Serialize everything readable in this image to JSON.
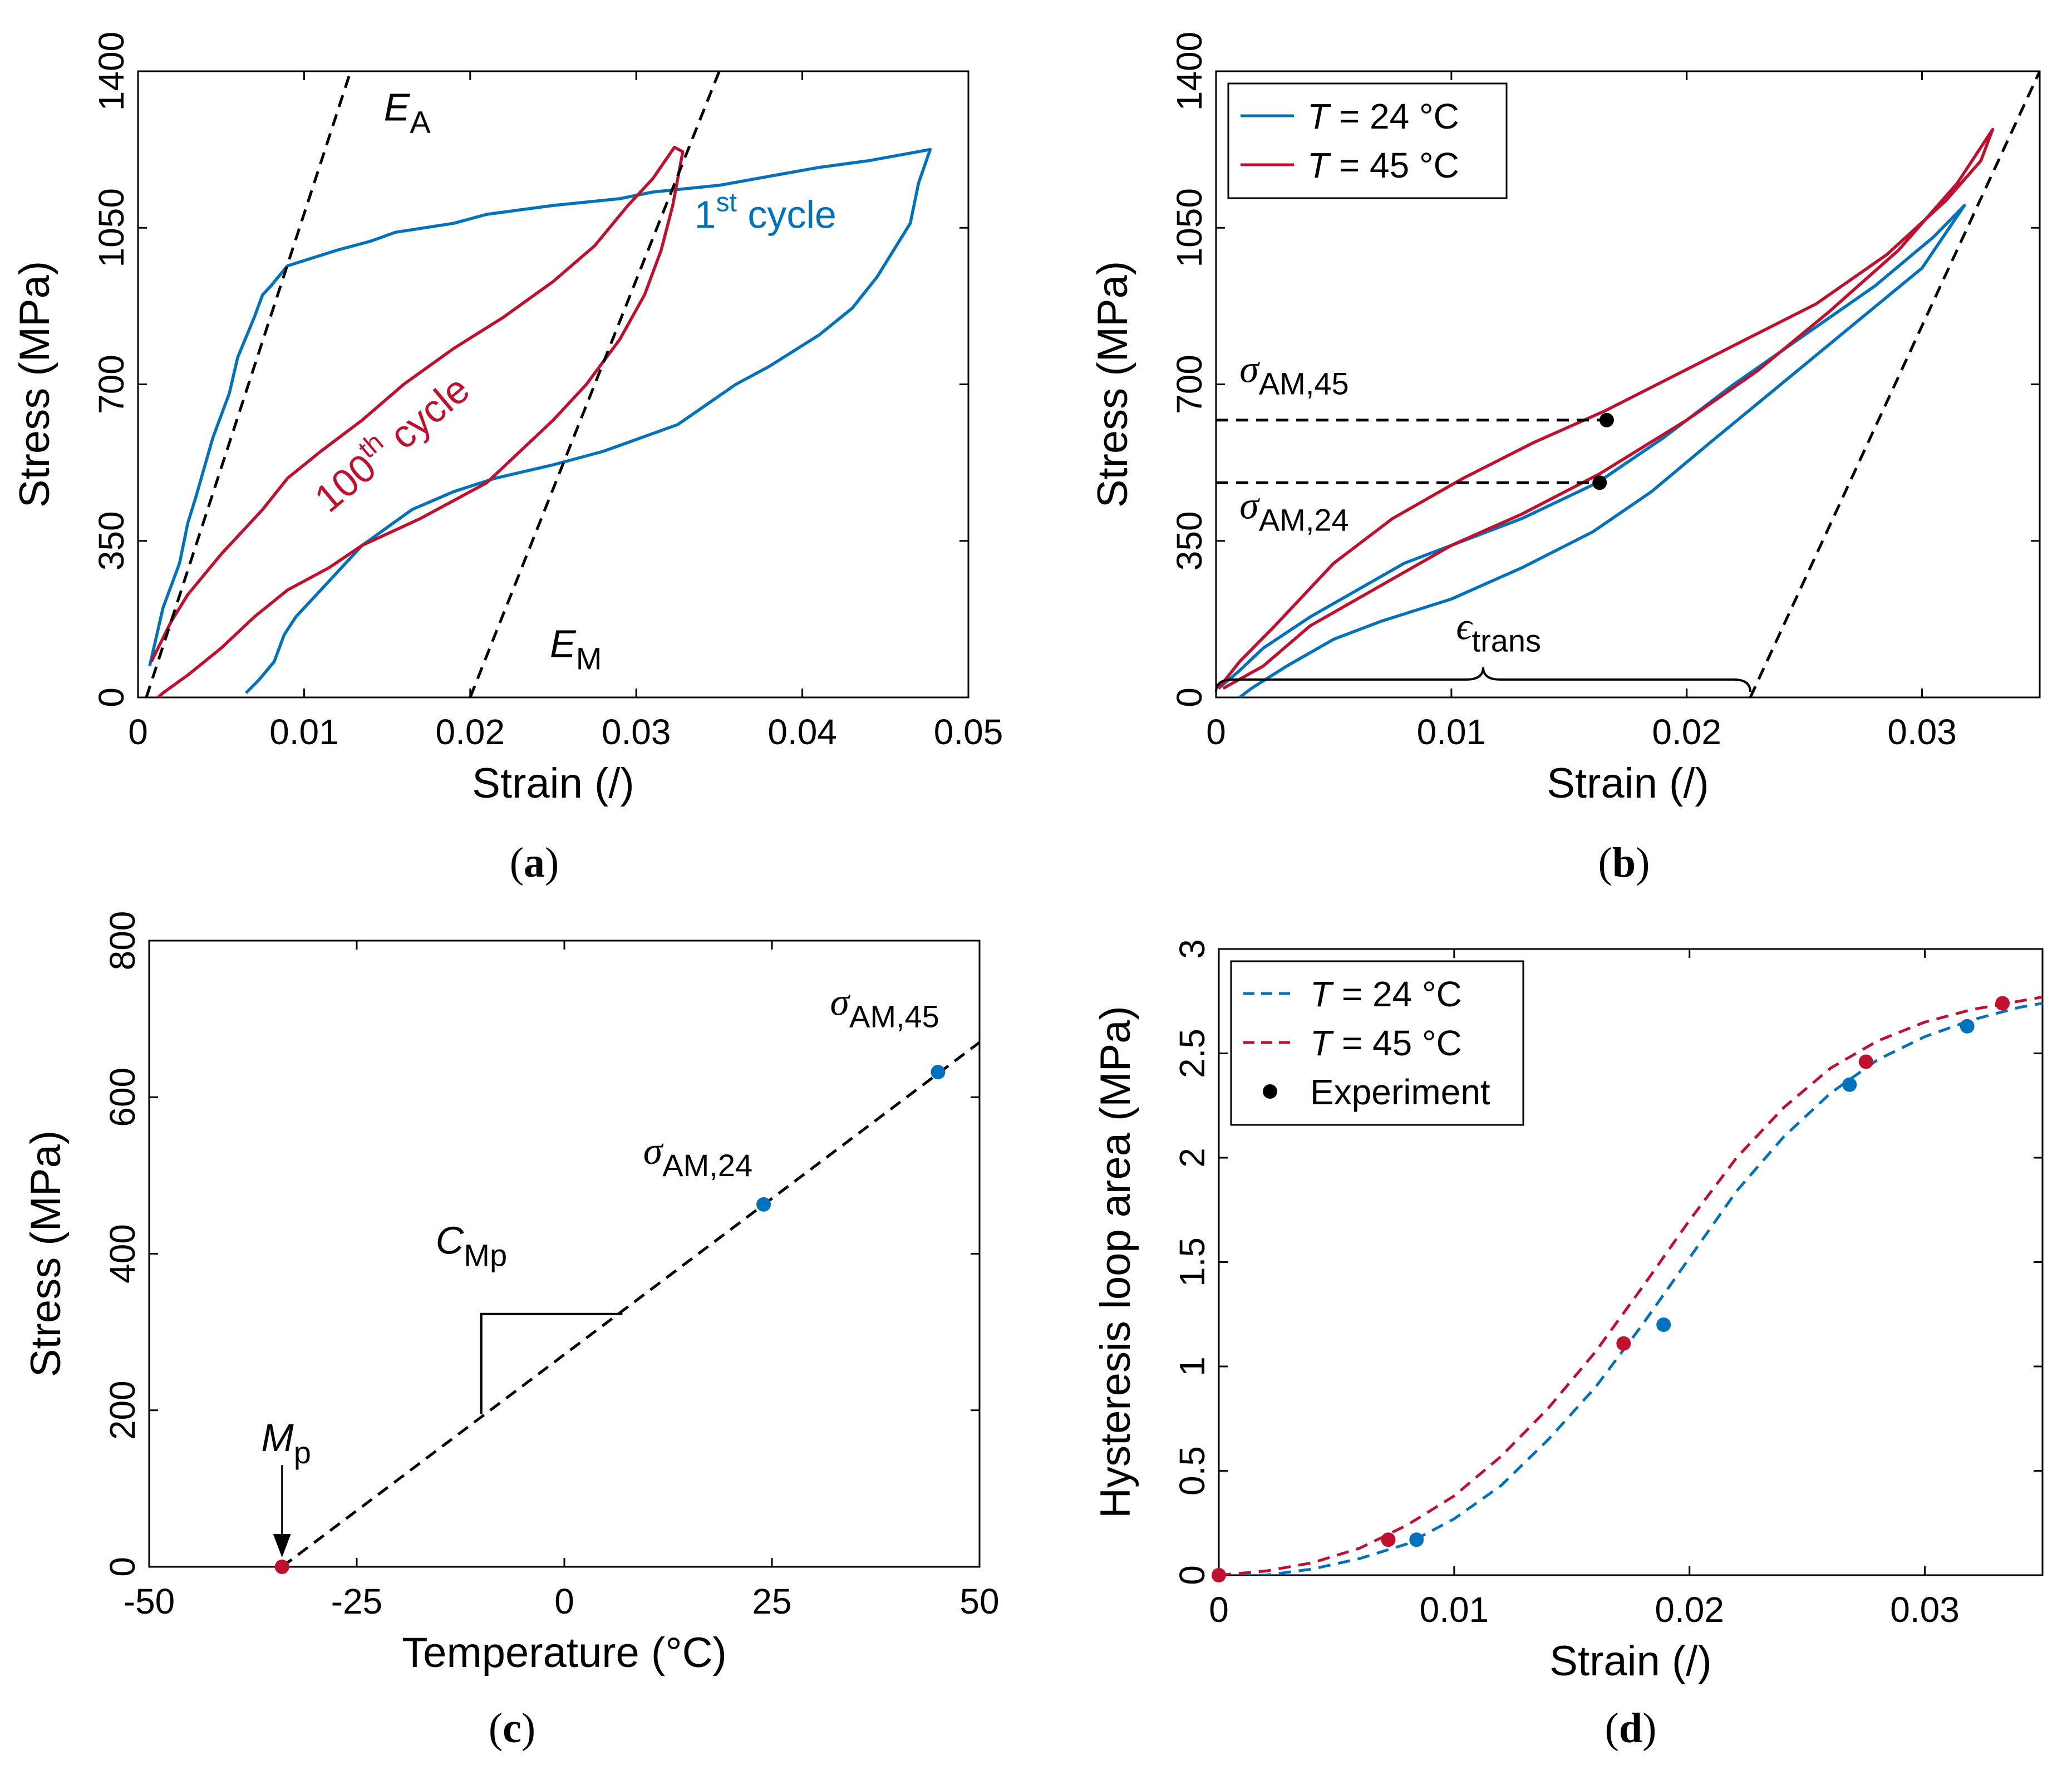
{
  "panels": [
    {
      "id": "a",
      "caption": "a",
      "xlabel": "Strain (/)",
      "ylabel": "Stress (MPa)",
      "xlim": [
        0,
        0.05
      ],
      "ylim": [
        0,
        1400
      ],
      "xticks": [
        0,
        0.01,
        0.02,
        0.03,
        0.04,
        0.05
      ],
      "xtick_labels": [
        "0",
        "0.01",
        "0.02",
        "0.03",
        "0.04",
        "0.05"
      ],
      "yticks": [
        0,
        350,
        700,
        1050,
        1400
      ],
      "ytick_labels": [
        "0",
        "350",
        "700",
        "1050",
        "1400"
      ],
      "colors": {
        "blue": "#0072BD",
        "red": "#C0102E"
      },
      "series": [
        {
          "color": "blue",
          "style": "solid",
          "x": [
            0.0007,
            0.0015,
            0.0025,
            0.003,
            0.0035,
            0.0045,
            0.0055,
            0.006,
            0.007,
            0.0075,
            0.008,
            0.009,
            0.012,
            0.014,
            0.0155,
            0.019,
            0.021,
            0.025,
            0.029,
            0.031,
            0.035,
            0.038,
            0.041,
            0.044,
            0.0477,
            0.047,
            0.0465,
            0.0455,
            0.0445,
            0.043,
            0.041,
            0.038,
            0.036,
            0.0325,
            0.0295,
            0.028,
            0.025,
            0.0215,
            0.019,
            0.0165,
            0.0135,
            0.0115,
            0.0095,
            0.0088,
            0.0082,
            0.0073,
            0.0065
          ],
          "y": [
            70,
            200,
            300,
            390,
            450,
            580,
            680,
            760,
            850,
            900,
            920,
            965,
            1000,
            1020,
            1040,
            1060,
            1080,
            1100,
            1115,
            1130,
            1145,
            1165,
            1185,
            1200,
            1225,
            1150,
            1060,
            1000,
            940,
            870,
            810,
            740,
            700,
            610,
            570,
            550,
            520,
            490,
            460,
            420,
            340,
            260,
            180,
            140,
            80,
            40,
            10
          ]
        },
        {
          "color": "red",
          "style": "solid",
          "x": [
            0.0008,
            0.002,
            0.003,
            0.005,
            0.0075,
            0.009,
            0.011,
            0.0135,
            0.016,
            0.019,
            0.022,
            0.025,
            0.0275,
            0.0295,
            0.031,
            0.0323,
            0.0328,
            0.0322,
            0.0315,
            0.0305,
            0.029,
            0.027,
            0.025,
            0.021,
            0.017,
            0.0135,
            0.0115,
            0.009,
            0.007,
            0.005,
            0.003,
            0.0015,
            0.0012
          ],
          "y": [
            80,
            170,
            230,
            320,
            420,
            490,
            550,
            620,
            700,
            780,
            850,
            930,
            1010,
            1100,
            1160,
            1230,
            1220,
            1100,
            1000,
            900,
            800,
            700,
            620,
            480,
            400,
            340,
            290,
            240,
            180,
            110,
            50,
            10,
            0
          ]
        },
        {
          "color": "black",
          "style": "dashed",
          "x": [
            0.0005,
            0.0128
          ],
          "y": [
            0,
            1400
          ]
        },
        {
          "color": "black",
          "style": "dashed",
          "x": [
            0.02,
            0.035
          ],
          "y": [
            0,
            1400
          ]
        }
      ],
      "annotations": [
        {
          "main": "E",
          "sub": "A",
          "sup": "",
          "color": "black",
          "x": 0.0148,
          "y": 1290
        },
        {
          "main": "E",
          "sub": "M",
          "sup": "",
          "color": "black",
          "x": 0.0248,
          "y": 90
        },
        {
          "main": "1",
          "sub": "",
          "sup": "st",
          "tail": " cycle",
          "color": "blue",
          "x": 0.0335,
          "y": 1050
        },
        {
          "main": "100",
          "sub": "",
          "sup": "th",
          "tail": " cycle",
          "color": "red",
          "x": 0.0115,
          "y": 410,
          "rotate": -40
        }
      ]
    },
    {
      "id": "b",
      "caption": "b",
      "xlabel": "Strain (/)",
      "ylabel": "Stress (MPa)",
      "xlim": [
        0,
        0.035
      ],
      "ylim": [
        0,
        1400
      ],
      "xticks": [
        0,
        0.01,
        0.02,
        0.03
      ],
      "xtick_labels": [
        "0",
        "0.01",
        "0.02",
        "0.03"
      ],
      "yticks": [
        0,
        350,
        700,
        1050,
        1400
      ],
      "ytick_labels": [
        "0",
        "350",
        "700",
        "1050",
        "1400"
      ],
      "legend": {
        "position": "top-left",
        "entries": [
          {
            "prefix": "T",
            "label": " = 24 °C",
            "color": "blue",
            "style": "solid"
          },
          {
            "prefix": "T",
            "label": " = 45 °C",
            "color": "red",
            "style": "solid"
          }
        ]
      },
      "series": [
        {
          "name": "T = 24 °C",
          "color": "blue",
          "style": "solid",
          "x": [
            0.0001,
            0.001,
            0.002,
            0.004,
            0.006,
            0.008,
            0.0105,
            0.013,
            0.0162,
            0.019,
            0.022,
            0.025,
            0.028,
            0.0305,
            0.0318,
            0.03,
            0.027,
            0.024,
            0.021,
            0.0185,
            0.016,
            0.013,
            0.01,
            0.007,
            0.005,
            0.003,
            0.0015,
            0.001
          ],
          "y": [
            20,
            60,
            110,
            180,
            240,
            300,
            350,
            400,
            480,
            580,
            700,
            810,
            920,
            1030,
            1100,
            960,
            830,
            700,
            570,
            460,
            370,
            290,
            220,
            170,
            130,
            70,
            20,
            0
          ]
        },
        {
          "name": "T = 45 °C",
          "color": "red",
          "style": "solid",
          "x": [
            0.0001,
            0.001,
            0.0025,
            0.005,
            0.0075,
            0.0105,
            0.0135,
            0.0165,
            0.0195,
            0.0225,
            0.0255,
            0.0285,
            0.031,
            0.0325,
            0.033,
            0.0315,
            0.029,
            0.026,
            0.023,
            0.02,
            0.0163,
            0.013,
            0.01,
            0.007,
            0.004,
            0.002,
            0.0003
          ],
          "y": [
            20,
            80,
            160,
            300,
            400,
            490,
            570,
            640,
            720,
            800,
            880,
            990,
            1110,
            1200,
            1270,
            1150,
            1000,
            860,
            730,
            620,
            500,
            410,
            340,
            250,
            160,
            70,
            20
          ]
        },
        {
          "color": "black",
          "style": "dashed",
          "x": [
            0.0227,
            0.035
          ],
          "y": [
            0,
            1400
          ]
        },
        {
          "color": "black",
          "style": "dashed",
          "x": [
            0.0,
            0.0166
          ],
          "y": [
            620,
            620
          ]
        },
        {
          "color": "black",
          "style": "dashed",
          "x": [
            0.0,
            0.0163
          ],
          "y": [
            480,
            480
          ]
        }
      ],
      "markers": [
        {
          "x": 0.0166,
          "y": 620,
          "color": "black"
        },
        {
          "x": 0.0163,
          "y": 480,
          "color": "black"
        }
      ],
      "annotations": [
        {
          "main": "σ",
          "sub": "AM,45",
          "sup": "",
          "color": "black",
          "x": 0.001,
          "y": 705
        },
        {
          "main": "σ",
          "sub": "AM,24",
          "sup": "",
          "color": "black",
          "x": 0.001,
          "y": 400
        },
        {
          "main": "ϵ",
          "sub": "trans",
          "sup": "",
          "color": "black",
          "x": 0.0102,
          "y": 130
        }
      ],
      "brace": {
        "x0": 0.0,
        "x1": 0.0227,
        "y": 40
      }
    },
    {
      "id": "c",
      "caption": "c",
      "xlabel": "Temperature (°C)",
      "ylabel": "Stress (MPa)",
      "xlim": [
        -50,
        50
      ],
      "ylim": [
        0,
        800
      ],
      "xticks": [
        -50,
        -25,
        0,
        25,
        50
      ],
      "xtick_labels": [
        "-50",
        "-25",
        "0",
        "25",
        "50"
      ],
      "yticks": [
        0,
        200,
        400,
        600,
        800
      ],
      "ytick_labels": [
        "0",
        "200",
        "400",
        "600",
        "800"
      ],
      "series": [
        {
          "color": "black",
          "style": "dashed",
          "x": [
            -34,
            50
          ],
          "y": [
            0,
            670
          ]
        }
      ],
      "markers": [
        {
          "x": -34,
          "y": 0,
          "color": "red"
        },
        {
          "x": 24,
          "y": 463,
          "color": "blue"
        },
        {
          "x": 45,
          "y": 632,
          "color": "blue"
        }
      ],
      "triangle": {
        "x0": -10,
        "x1": 7,
        "y0": 195,
        "y1": 323
      },
      "arrow": {
        "x": -34,
        "y_from": 130,
        "y_to": 12
      },
      "annotations": [
        {
          "main": "σ",
          "sub": "AM,45",
          "sup": "",
          "color": "black",
          "x": 32,
          "y": 705
        },
        {
          "main": "σ",
          "sub": "AM,24",
          "sup": "",
          "color": "black",
          "x": 9.5,
          "y": 515
        },
        {
          "main": "C",
          "sub": "Mp",
          "sup": "",
          "color": "black",
          "x": -15.5,
          "y": 400
        },
        {
          "main": "M",
          "sub": "p",
          "sup": "",
          "color": "black",
          "x": -36.5,
          "y": 148
        }
      ]
    },
    {
      "id": "d",
      "caption": "d",
      "xlabel": "Strain (/)",
      "ylabel": "Hysteresis loop area (MPa)",
      "xlim": [
        0,
        0.035
      ],
      "ylim": [
        0,
        3
      ],
      "xticks": [
        0,
        0.01,
        0.02,
        0.03
      ],
      "xtick_labels": [
        "0",
        "0.01",
        "0.02",
        "0.03"
      ],
      "yticks": [
        0,
        0.5,
        1,
        1.5,
        2,
        2.5,
        3
      ],
      "ytick_labels": [
        "0",
        "0.5",
        "1",
        "1.5",
        "2",
        "2.5",
        "3"
      ],
      "legend": {
        "position": "top-left",
        "entries": [
          {
            "prefix": "T",
            "label": " = 24 °C",
            "color": "blue",
            "style": "dashed"
          },
          {
            "prefix": "T",
            "label": " = 45 °C",
            "color": "red",
            "style": "dashed"
          },
          {
            "prefix": "",
            "label": "Experiment",
            "color": "black",
            "style": "marker"
          }
        ]
      },
      "series": [
        {
          "name": "T = 24 °C",
          "color": "blue",
          "style": "dashed",
          "x": [
            0,
            0.002,
            0.004,
            0.006,
            0.008,
            0.01,
            0.012,
            0.014,
            0.016,
            0.018,
            0.02,
            0.022,
            0.024,
            0.026,
            0.028,
            0.03,
            0.032,
            0.034,
            0.035
          ],
          "y": [
            0,
            0.0,
            0.03,
            0.08,
            0.15,
            0.27,
            0.43,
            0.65,
            0.9,
            1.2,
            1.52,
            1.84,
            2.1,
            2.31,
            2.47,
            2.58,
            2.66,
            2.72,
            2.74
          ]
        },
        {
          "name": "T = 45 °C",
          "color": "red",
          "style": "dashed",
          "x": [
            0,
            0.002,
            0.004,
            0.006,
            0.008,
            0.01,
            0.012,
            0.014,
            0.016,
            0.018,
            0.02,
            0.022,
            0.024,
            0.026,
            0.028,
            0.03,
            0.032,
            0.034,
            0.035
          ],
          "y": [
            0,
            0.02,
            0.06,
            0.13,
            0.24,
            0.38,
            0.57,
            0.8,
            1.07,
            1.38,
            1.7,
            2.0,
            2.24,
            2.43,
            2.56,
            2.65,
            2.71,
            2.75,
            2.77
          ]
        }
      ],
      "markers": [
        {
          "x": 0,
          "y": 0,
          "color": "red"
        },
        {
          "x": 0.0084,
          "y": 0.17,
          "color": "blue"
        },
        {
          "x": 0.0072,
          "y": 0.17,
          "color": "red"
        },
        {
          "x": 0.0189,
          "y": 1.2,
          "color": "blue"
        },
        {
          "x": 0.0172,
          "y": 1.11,
          "color": "red"
        },
        {
          "x": 0.0268,
          "y": 2.35,
          "color": "blue"
        },
        {
          "x": 0.0275,
          "y": 2.46,
          "color": "red"
        },
        {
          "x": 0.0318,
          "y": 2.63,
          "color": "blue"
        },
        {
          "x": 0.0333,
          "y": 2.74,
          "color": "red"
        }
      ]
    }
  ]
}
